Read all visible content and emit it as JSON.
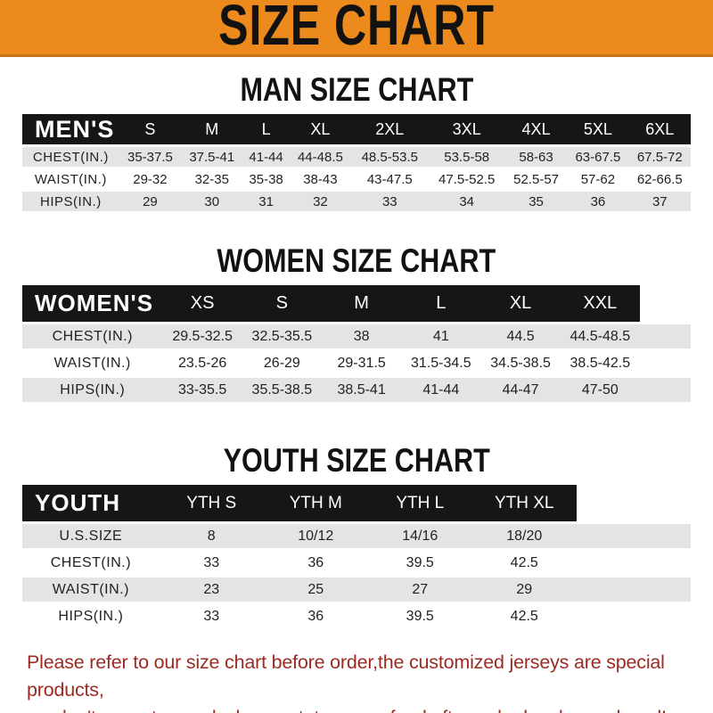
{
  "banner": {
    "title": "SIZE CHART"
  },
  "colors": {
    "banner_bg": "#EC8A1D",
    "banner_edge": "#C9751B",
    "header_bar_bg": "#161616",
    "row_stripe": "#E4E4E4",
    "note_text": "#9C2B23"
  },
  "sections": [
    {
      "heading": "MAN SIZE CHART",
      "header_label": "MEN'S",
      "columns": [
        "S",
        "M",
        "L",
        "XL",
        "2XL",
        "3XL",
        "4XL",
        "5XL",
        "6XL"
      ],
      "filler": false,
      "rows": [
        {
          "label": "CHEST(IN.)",
          "values": [
            "35-37.5",
            "37.5-41",
            "41-44",
            "44-48.5",
            "48.5-53.5",
            "53.5-58",
            "58-63",
            "63-67.5",
            "67.5-72"
          ]
        },
        {
          "label": "WAIST(IN.)",
          "values": [
            "29-32",
            "32-35",
            "35-38",
            "38-43",
            "43-47.5",
            "47.5-52.5",
            "52.5-57",
            "57-62",
            "62-66.5"
          ]
        },
        {
          "label": "HIPS(IN.)",
          "values": [
            "29",
            "30",
            "31",
            "32",
            "33",
            "34",
            "35",
            "36",
            "37"
          ]
        }
      ]
    },
    {
      "heading": "WOMEN SIZE CHART",
      "header_label": "WOMEN'S",
      "columns": [
        "XS",
        "S",
        "M",
        "L",
        "XL",
        "XXL"
      ],
      "filler": true,
      "rows": [
        {
          "label": "CHEST(IN.)",
          "values": [
            "29.5-32.5",
            "32.5-35.5",
            "38",
            "41",
            "44.5",
            "44.5-48.5"
          ]
        },
        {
          "label": "WAIST(IN.)",
          "values": [
            "23.5-26",
            "26-29",
            "29-31.5",
            "31.5-34.5",
            "34.5-38.5",
            "38.5-42.5"
          ]
        },
        {
          "label": "HIPS(IN.)",
          "values": [
            "33-35.5",
            "35.5-38.5",
            "38.5-41",
            "41-44",
            "44-47",
            "47-50"
          ]
        }
      ]
    },
    {
      "heading": "YOUTH SIZE CHART",
      "header_label": "YOUTH",
      "columns": [
        "YTH S",
        "YTH M",
        "YTH L",
        "YTH XL"
      ],
      "filler": true,
      "rows": [
        {
          "label": "U.S.SIZE",
          "values": [
            "8",
            "10/12",
            "14/16",
            "18/20"
          ]
        },
        {
          "label": "CHEST(IN.)",
          "values": [
            "33",
            "36",
            "39.5",
            "42.5"
          ]
        },
        {
          "label": "WAIST(IN.)",
          "values": [
            "23",
            "25",
            "27",
            "29"
          ]
        },
        {
          "label": "HIPS(IN.)",
          "values": [
            "33",
            "36",
            "39.5",
            "42.5"
          ]
        }
      ]
    }
  ],
  "note": {
    "line1": "Please refer to our size chart before order,the customized jerseys are special products,",
    "line2": "we don't accept cancel, change, teturn or refund after order has been placed!"
  }
}
